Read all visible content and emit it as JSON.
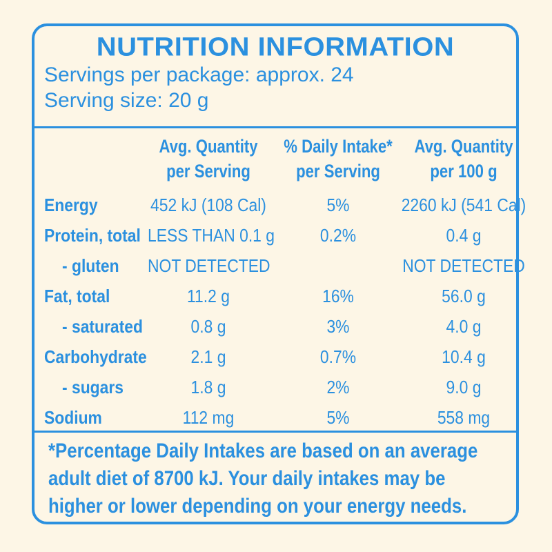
{
  "title": "NUTRITION INFORMATION",
  "servings_per_package": "Servings per package: approx. 24",
  "serving_size": "Serving size: 20 g",
  "columns": {
    "per_serving": [
      "Avg. Quantity",
      "per Serving"
    ],
    "daily_intake": [
      "% Daily Intake*",
      "per Serving"
    ],
    "per_100g": [
      "Avg. Quantity",
      "per 100 g"
    ]
  },
  "rows": [
    {
      "label": "Energy",
      "per_serving": "452 kJ (108 Cal)",
      "daily_intake": "5%",
      "per_100g": "2260 kJ (541 Cal)"
    },
    {
      "label": "Protein, total",
      "per_serving": "LESS THAN 0.1 g",
      "daily_intake": "0.2%",
      "per_100g": "0.4 g"
    },
    {
      "label": "- gluten",
      "per_serving": "NOT DETECTED",
      "daily_intake": "",
      "per_100g": "NOT DETECTED"
    },
    {
      "label": "Fat, total",
      "per_serving": "11.2 g",
      "daily_intake": "16%",
      "per_100g": "56.0 g"
    },
    {
      "label": "- saturated",
      "per_serving": "0.8 g",
      "daily_intake": "3%",
      "per_100g": "4.0 g"
    },
    {
      "label": "Carbohydrate",
      "per_serving": "2.1 g",
      "daily_intake": "0.7%",
      "per_100g": "10.4 g"
    },
    {
      "label": "- sugars",
      "per_serving": "1.8 g",
      "daily_intake": "2%",
      "per_100g": "9.0 g"
    },
    {
      "label": "Sodium",
      "per_serving": "112 mg",
      "daily_intake": "5%",
      "per_100g": "558 mg"
    }
  ],
  "footnote": [
    "*Percentage Daily Intakes are based on an average",
    "adult diet of 8700 kJ. Your daily intakes may be",
    "higher or lower depending on your energy needs."
  ]
}
